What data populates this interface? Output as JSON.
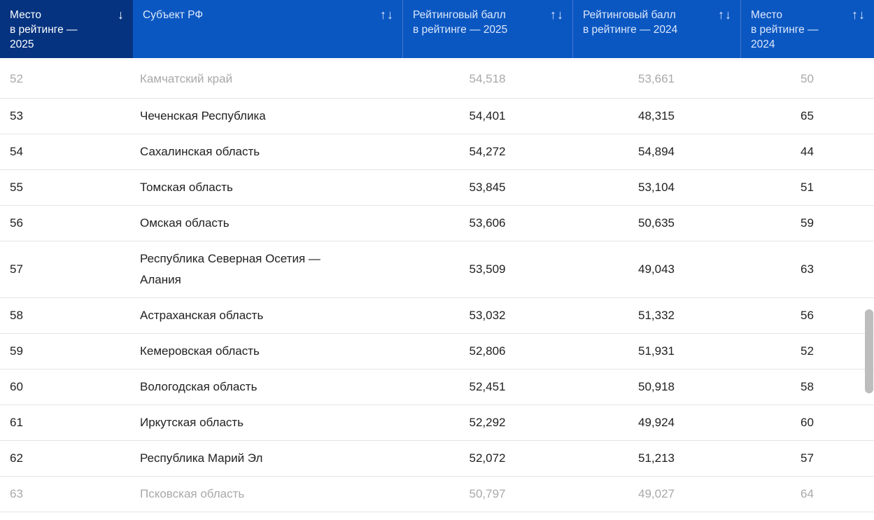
{
  "header": {
    "columns": [
      {
        "label": "Место\nв рейтинге —\n2025",
        "sort_icon": "↓",
        "sort_state": "descending",
        "active": true
      },
      {
        "label": "Субъект РФ",
        "sort_icon": "↑↓",
        "sort_state": "none",
        "active": false
      },
      {
        "label": "Рейтинговый балл\nв рейтинге — 2025",
        "sort_icon": "↑↓",
        "sort_state": "none",
        "active": false
      },
      {
        "label": "Рейтинговый балл\nв рейтинге — 2024",
        "sort_icon": "↑↓",
        "sort_state": "none",
        "active": false
      },
      {
        "label": "Место\nв рейтинге —\n2024",
        "sort_icon": "↑↓",
        "sort_state": "none",
        "active": false
      }
    ]
  },
  "rows": [
    {
      "place_2025": "52",
      "region": "Камчатский край",
      "score_2025": "54,518",
      "score_2024": "53,661",
      "place_2024": "50",
      "faded": true
    },
    {
      "place_2025": "53",
      "region": "Чеченская Республика",
      "score_2025": "54,401",
      "score_2024": "48,315",
      "place_2024": "65",
      "faded": false
    },
    {
      "place_2025": "54",
      "region": "Сахалинская область",
      "score_2025": "54,272",
      "score_2024": "54,894",
      "place_2024": "44",
      "faded": false
    },
    {
      "place_2025": "55",
      "region": "Томская область",
      "score_2025": "53,845",
      "score_2024": "53,104",
      "place_2024": "51",
      "faded": false
    },
    {
      "place_2025": "56",
      "region": "Омская область",
      "score_2025": "53,606",
      "score_2024": "50,635",
      "place_2024": "59",
      "faded": false
    },
    {
      "place_2025": "57",
      "region": "Республика Северная Осетия —\nАлания",
      "score_2025": "53,509",
      "score_2024": "49,043",
      "place_2024": "63",
      "faded": false
    },
    {
      "place_2025": "58",
      "region": "Астраханская область",
      "score_2025": "53,032",
      "score_2024": "51,332",
      "place_2024": "56",
      "faded": false
    },
    {
      "place_2025": "59",
      "region": "Кемеровская область",
      "score_2025": "52,806",
      "score_2024": "51,931",
      "place_2024": "52",
      "faded": false
    },
    {
      "place_2025": "60",
      "region": "Вологодская область",
      "score_2025": "52,451",
      "score_2024": "50,918",
      "place_2024": "58",
      "faded": false
    },
    {
      "place_2025": "61",
      "region": "Иркутская область",
      "score_2025": "52,292",
      "score_2024": "49,924",
      "place_2024": "60",
      "faded": false
    },
    {
      "place_2025": "62",
      "region": "Республика Марий Эл",
      "score_2025": "52,072",
      "score_2024": "51,213",
      "place_2024": "57",
      "faded": false
    },
    {
      "place_2025": "63",
      "region": "Псковская область",
      "score_2025": "50,797",
      "score_2024": "49,027",
      "place_2024": "64",
      "faded": true
    }
  ],
  "colors": {
    "header_active_bg": "#053380",
    "header_bg": "#0b57c2",
    "header_divider": "#4377cd",
    "row_border": "#e4e4e4",
    "text": "#212121",
    "faded_text": "#a9a9a9",
    "scrollbar": "#bdbdbd"
  }
}
